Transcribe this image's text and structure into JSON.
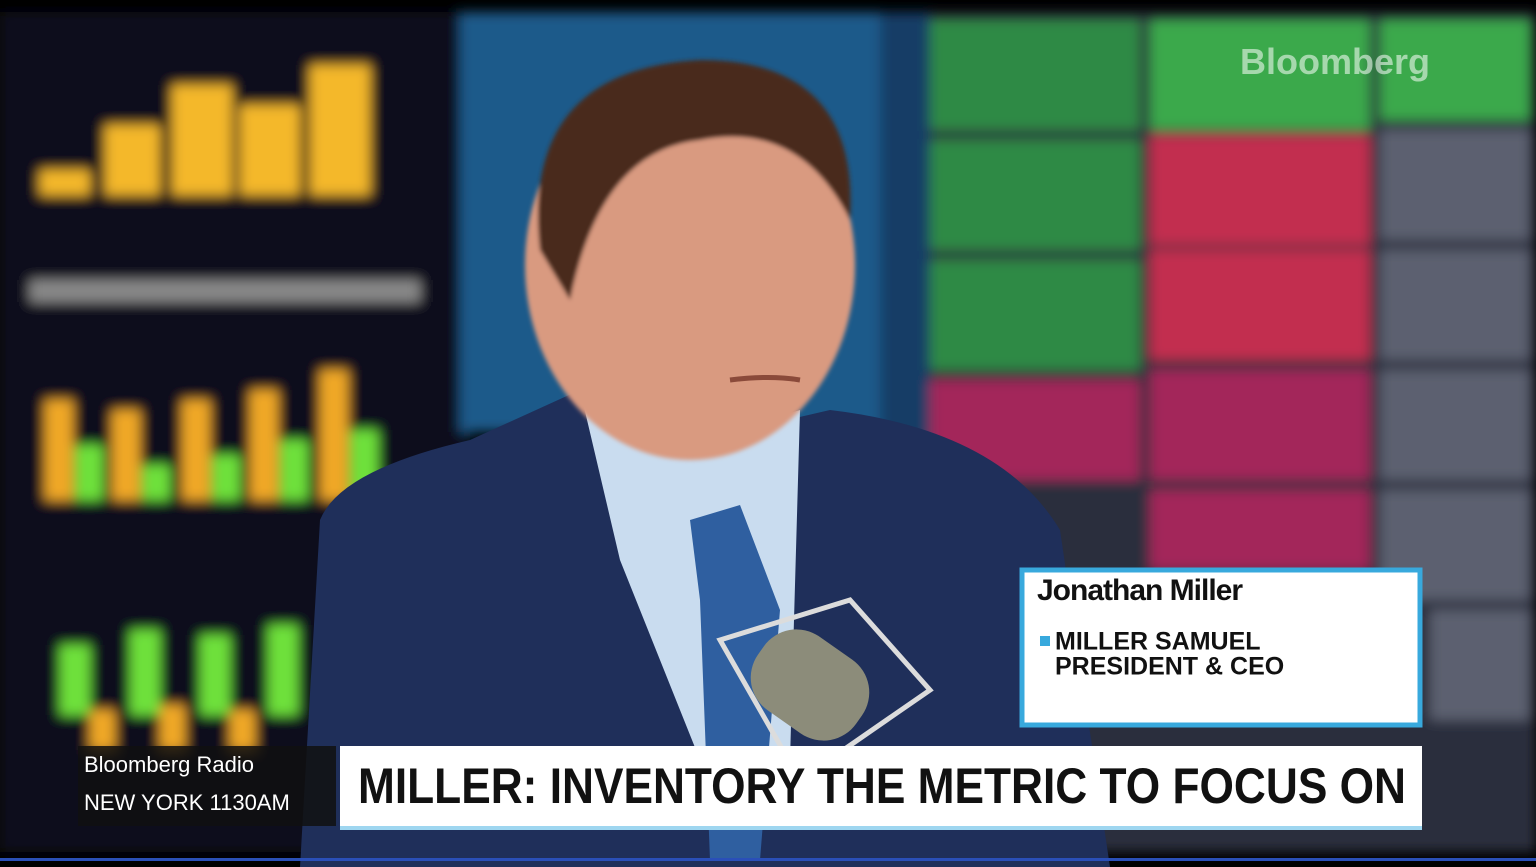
{
  "watermark": "Bloomberg",
  "lower_third": {
    "name": "Jonathan Miller",
    "lines": [
      "MILLER SAMUEL",
      "PRESIDENT & CEO"
    ]
  },
  "station": {
    "name": "Bloomberg Radio",
    "frequency": "NEW YORK 1130AM"
  },
  "headline": "MILLER: INVENTORY THE METRIC TO FOCUS ON"
}
